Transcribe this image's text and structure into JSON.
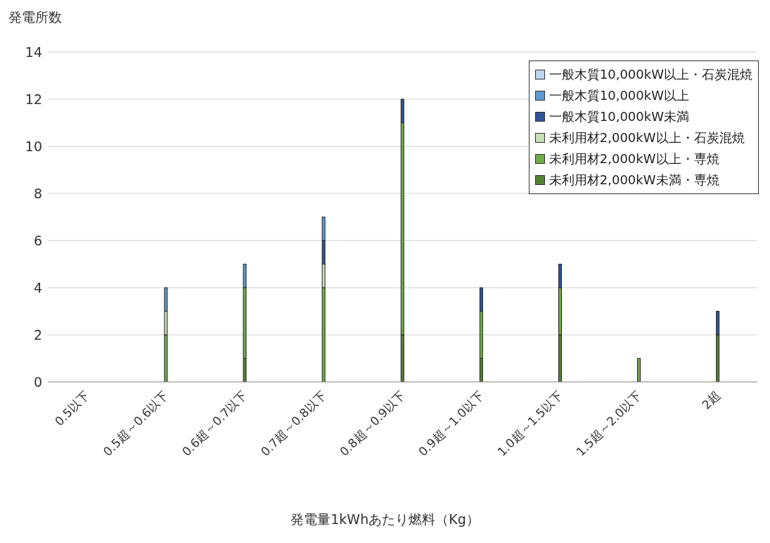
{
  "chart_data": {
    "type": "bar",
    "stacked": true,
    "xlabel": "発電量1kWhあたり燃料（Kg）",
    "ylabel": "発電所数",
    "categories": [
      "0.5以下",
      "0.5超～0.6以下",
      "0.6超～0.7以下",
      "0.7超～0.8以下",
      "0.8超～0.9以下",
      "0.9超～1.0以下",
      "1.0超～1.5以下",
      "1.5超～2.0以下",
      "2超"
    ],
    "series": [
      {
        "name": "未利用材2,000kW未満・専焼",
        "color": "#548235",
        "values": [
          0,
          0,
          1,
          0,
          2,
          1,
          2,
          0,
          2
        ]
      },
      {
        "name": "未利用材2,000kW以上・専焼",
        "color": "#70ad47",
        "values": [
          0,
          2,
          3,
          4,
          9,
          2,
          2,
          1,
          0
        ]
      },
      {
        "name": "未利用材2,000kW以上・石炭混焼",
        "color": "#c5e0b4",
        "values": [
          0,
          1,
          0,
          1,
          0,
          0,
          0,
          0,
          0
        ]
      },
      {
        "name": "一般木質10,000kW未満",
        "color": "#2f5597",
        "values": [
          0,
          0,
          0,
          1,
          1,
          1,
          1,
          0,
          1
        ]
      },
      {
        "name": "一般木質10,000kW以上",
        "color": "#5b9bd5",
        "values": [
          0,
          1,
          1,
          1,
          0,
          0,
          0,
          0,
          0
        ]
      },
      {
        "name": "一般木質10,000kW以上・石炭混焼",
        "color": "#bdd7ee",
        "values": [
          0,
          0,
          0,
          0,
          0,
          0,
          0,
          0,
          0
        ]
      }
    ],
    "ylim": [
      0,
      14
    ],
    "yticks": [
      0,
      2,
      4,
      6,
      8,
      10,
      12,
      14
    ],
    "grid": "y",
    "legend": "top right"
  }
}
